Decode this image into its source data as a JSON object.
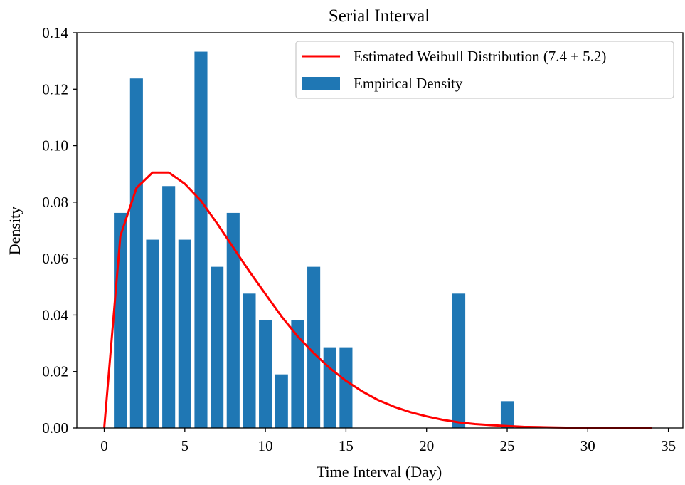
{
  "chart_data": {
    "type": "bar",
    "title": "Serial Interval",
    "xlabel": "Time Interval (Day)",
    "ylabel": "Density",
    "xlim": [
      -1.7,
      35.9
    ],
    "ylim": [
      0,
      0.14
    ],
    "xticks": [
      0,
      5,
      10,
      15,
      20,
      25,
      30,
      35
    ],
    "yticks": [
      0.0,
      0.02,
      0.04,
      0.06,
      0.08,
      0.1,
      0.12,
      0.14
    ],
    "ytick_labels": [
      "0.00",
      "0.02",
      "0.04",
      "0.06",
      "0.08",
      "0.10",
      "0.12",
      "0.14"
    ],
    "grid": false,
    "legend_position": "top-right",
    "bar_color": "#1f77b4",
    "line_color": "#ff0000",
    "series": [
      {
        "name": "Estimated Weibull Distribution (7.4 ± 5.2)",
        "kind": "line",
        "x": [
          0,
          1,
          2,
          3,
          4,
          5,
          6,
          7,
          8,
          9,
          10,
          11,
          12,
          13,
          14,
          15,
          16,
          17,
          18,
          19,
          20,
          21,
          22,
          23,
          24,
          25,
          26,
          27,
          28,
          29,
          30,
          31,
          32,
          33,
          34
        ],
        "values": [
          0.0,
          0.068,
          0.085,
          0.0905,
          0.0905,
          0.0865,
          0.0805,
          0.0725,
          0.064,
          0.0555,
          0.0475,
          0.0395,
          0.0325,
          0.0265,
          0.0212,
          0.0167,
          0.013,
          0.0099,
          0.0075,
          0.0056,
          0.0041,
          0.0029,
          0.002,
          0.0014,
          0.001,
          0.0007,
          0.0004,
          0.0003,
          0.0002,
          0.0001,
          0.0001,
          0.0,
          0.0,
          0.0,
          0.0
        ]
      },
      {
        "name": "Empirical Density",
        "kind": "bar",
        "x": [
          1,
          2,
          3,
          4,
          5,
          6,
          7,
          8,
          9,
          10,
          11,
          12,
          13,
          14,
          15,
          22,
          25
        ],
        "values": [
          0.0762,
          0.1238,
          0.0667,
          0.0857,
          0.0667,
          0.1333,
          0.0571,
          0.0762,
          0.0476,
          0.0381,
          0.019,
          0.0381,
          0.0571,
          0.0286,
          0.0286,
          0.0476,
          0.0095
        ]
      }
    ]
  }
}
